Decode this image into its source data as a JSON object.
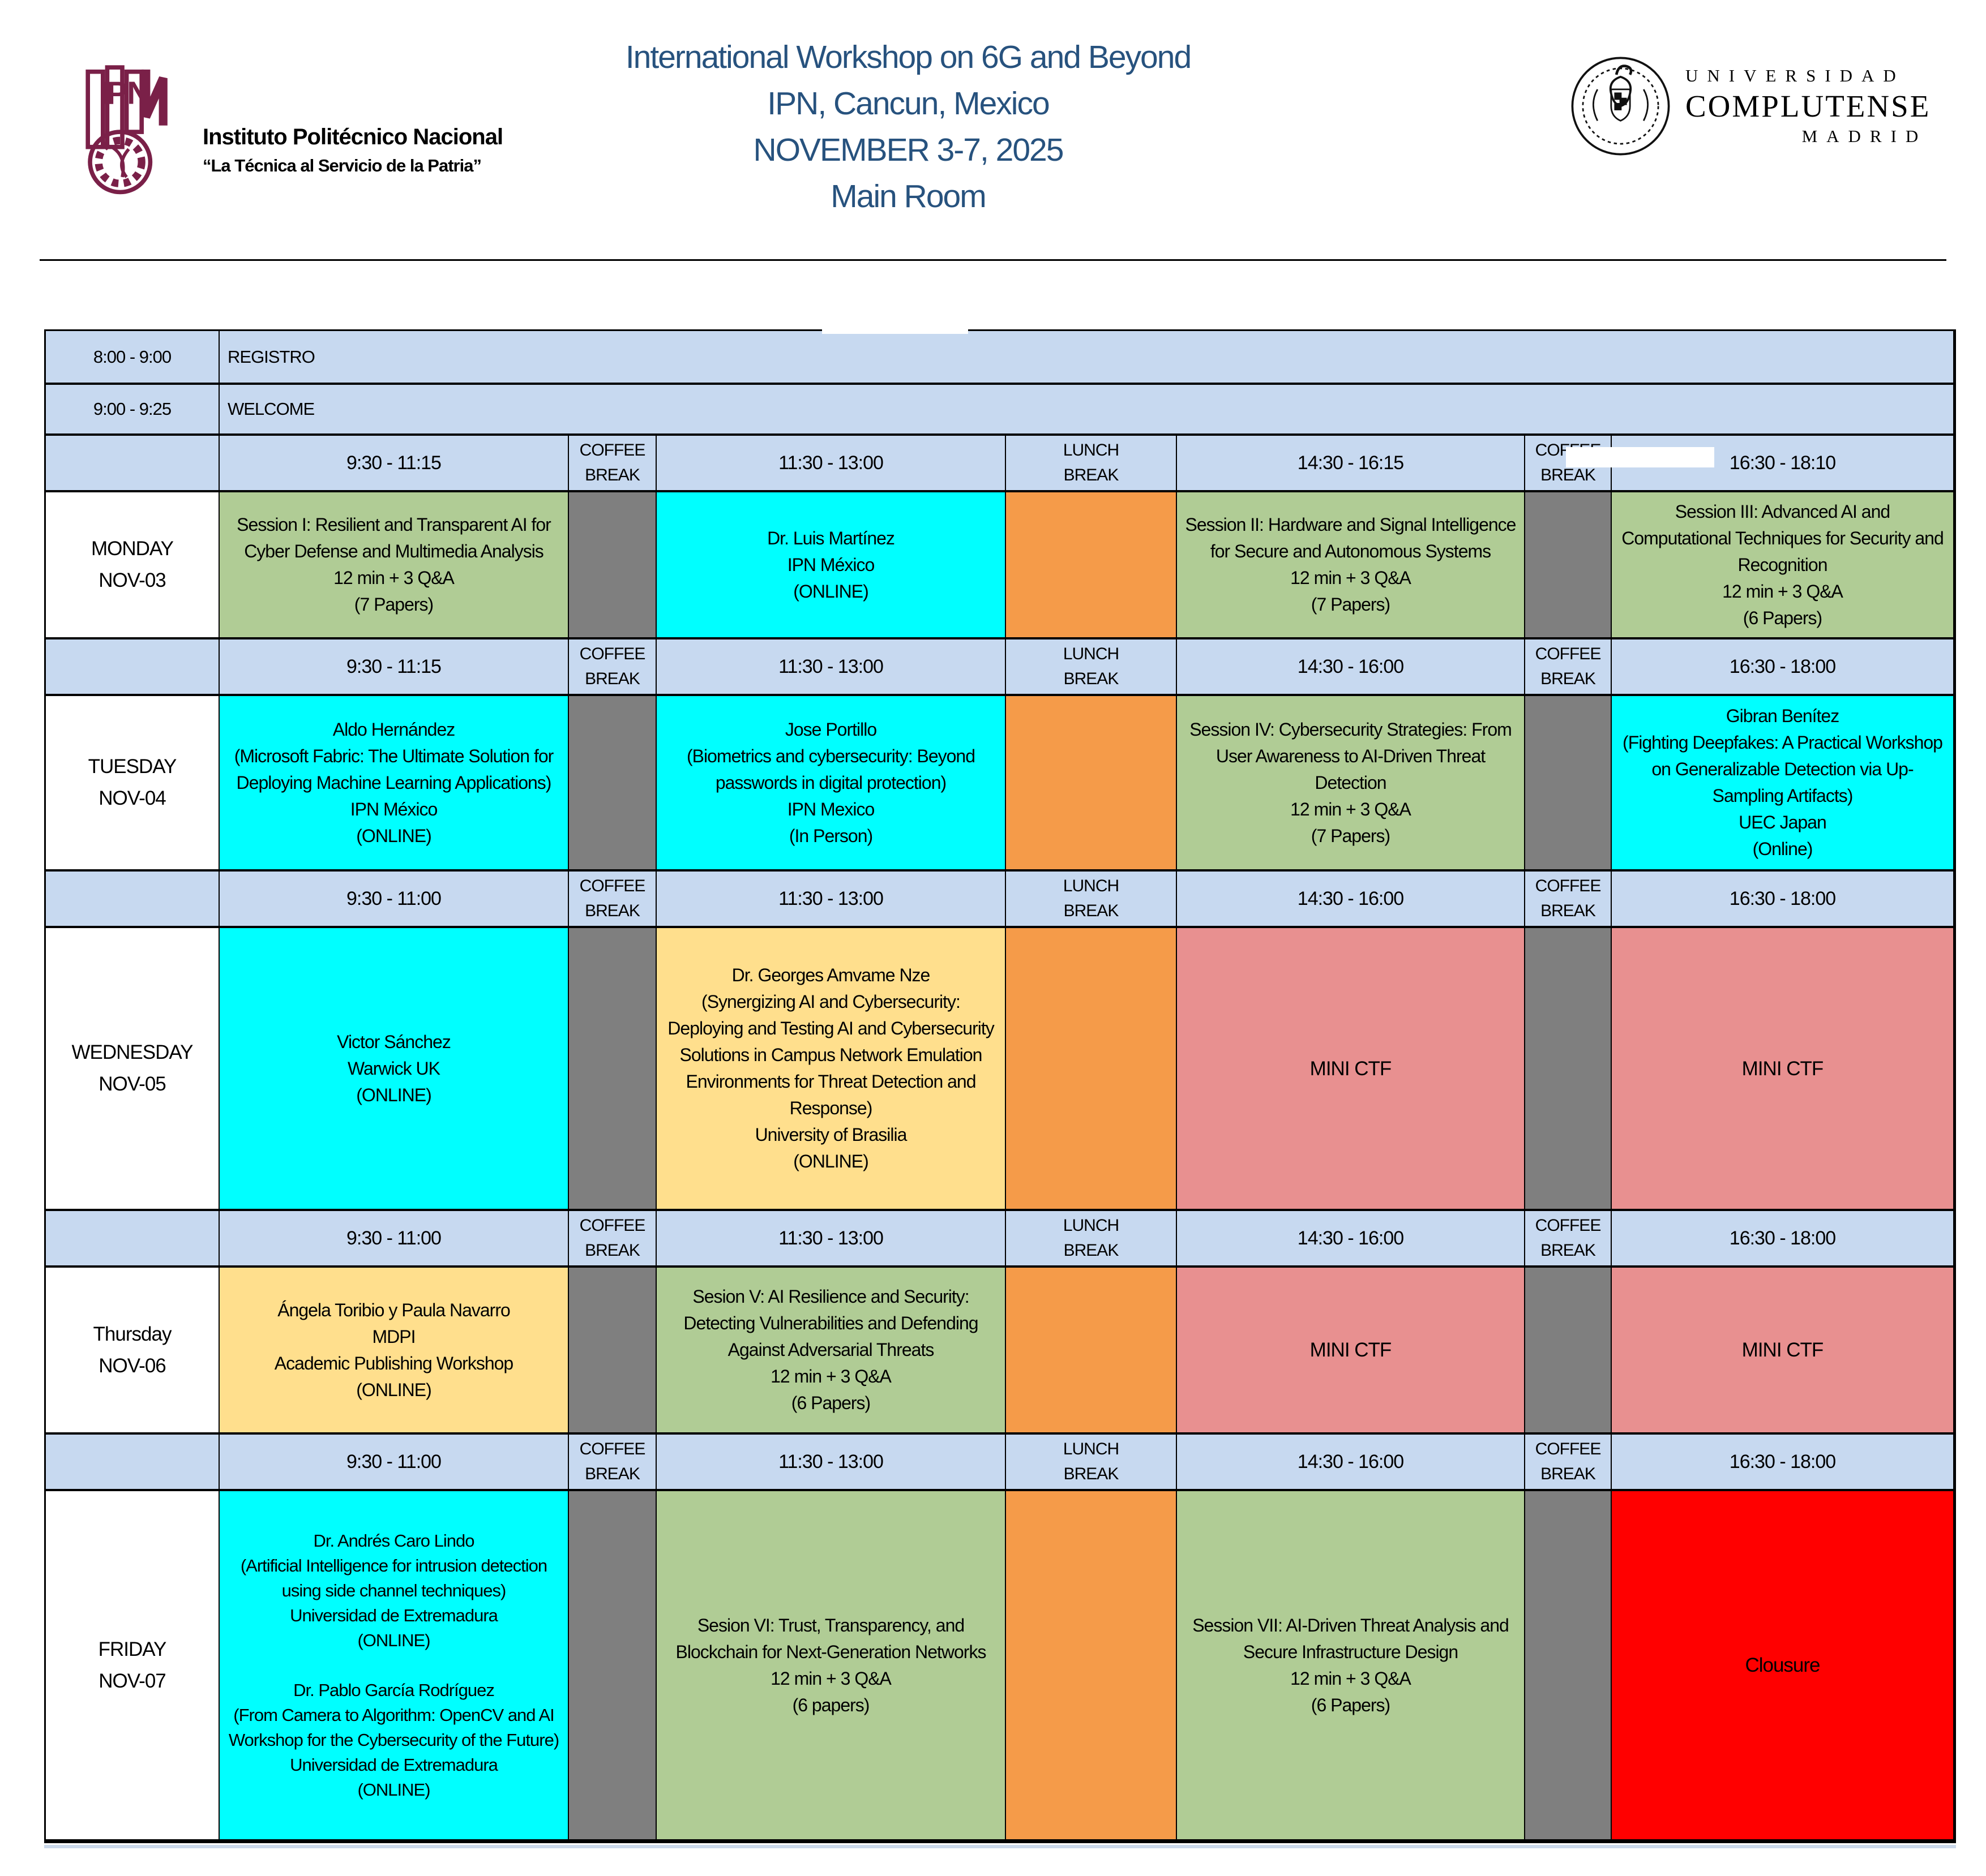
{
  "header": {
    "ipn": {
      "name": "Instituto Politécnico Nacional",
      "motto": "“La Técnica al Servicio de la Patria”"
    },
    "title_lines": [
      "International Workshop on 6G and Beyond",
      "IPN, Cancun, Mexico",
      "NOVEMBER 3-7, 2025",
      "Main Room"
    ],
    "ucm": {
      "line1": "UNIVERSIDAD",
      "line2": "COMPLUTENSE",
      "line3": "MADRID"
    }
  },
  "colors": {
    "title_blue": "#27527E",
    "header_blue": "#C7D9F0",
    "green": "#B0CC95",
    "cyan": "#00FFFF",
    "orange": "#F59B49",
    "gray": "#7F7F7F",
    "salmon": "#E89090",
    "yellow": "#FFDF8D",
    "red": "#FF0000",
    "ipn_maroon": "#7A2048"
  },
  "schedule": {
    "pre_rows": [
      {
        "time": "8:00 - 9:00",
        "label": "REGISTRO"
      },
      {
        "time": "9:00 - 9:25",
        "label": "WELCOME"
      }
    ],
    "break_labels": {
      "coffee": "COFFEE\nBREAK",
      "lunch": "LUNCH\nBREAK"
    },
    "days": [
      {
        "day": "MONDAY",
        "date": "NOV-03",
        "slots": [
          "9:30 - 11:15",
          "11:30 - 13:00",
          "14:30 - 16:15",
          "16:30 - 18:10"
        ],
        "cells": [
          {
            "color": "green",
            "text": "Session I: Resilient and Transparent AI for Cyber Defense and Multimedia Analysis\n12 min + 3 Q&A\n(7 Papers)"
          },
          {
            "color": "cyan",
            "text": "Dr. Luis Martínez\nIPN México\n(ONLINE)"
          },
          {
            "color": "green",
            "text": "Session II: Hardware and Signal Intelligence for Secure and Autonomous Systems\n12 min + 3 Q&A\n(7 Papers)"
          },
          {
            "color": "green",
            "text": "Session III: Advanced AI and Computational Techniques for Security and Recognition\n12 min + 3 Q&A\n(6 Papers)"
          }
        ]
      },
      {
        "day": "TUESDAY",
        "date": "NOV-04",
        "slots": [
          "9:30 - 11:15",
          "11:30 - 13:00",
          "14:30 - 16:00",
          "16:30 - 18:00"
        ],
        "cells": [
          {
            "color": "cyan",
            "text": "Aldo Hernández\n(Microsoft Fabric: The Ultimate Solution for Deploying Machine Learning Applications)\nIPN México\n(ONLINE)"
          },
          {
            "color": "cyan",
            "text": "Jose Portillo\n(Biometrics and cybersecurity: Beyond passwords in digital protection)\nIPN Mexico\n(In Person)"
          },
          {
            "color": "green",
            "text": "Session IV: Cybersecurity Strategies: From User Awareness to AI-Driven Threat Detection\n12 min + 3 Q&A\n(7 Papers)"
          },
          {
            "color": "cyan",
            "text": "Gibran Benítez\n(Fighting Deepfakes: A Practical Workshop on Generalizable Detection via Up-Sampling Artifacts)\nUEC Japan\n(Online)"
          }
        ]
      },
      {
        "day": "WEDNESDAY",
        "date": "NOV-05",
        "slots": [
          "9:30 - 11:00",
          "11:30 - 13:00",
          "14:30 - 16:00",
          "16:30 - 18:00"
        ],
        "cells": [
          {
            "color": "cyan",
            "text": "Victor Sánchez\nWarwick UK\n(ONLINE)"
          },
          {
            "color": "yellow",
            "text": "Dr. Georges Amvame Nze\n(Synergizing AI and Cybersecurity: Deploying and Testing AI and Cybersecurity Solutions in Campus Network Emulation Environments for Threat Detection and Response)\nUniversity of Brasilia\n(ONLINE)"
          },
          {
            "color": "salmon",
            "text": "MINI CTF"
          },
          {
            "color": "salmon",
            "text": "MINI CTF"
          }
        ]
      },
      {
        "day": "Thursday",
        "date": "NOV-06",
        "slots": [
          "9:30 - 11:00",
          "11:30 - 13:00",
          "14:30 - 16:00",
          "16:30 - 18:00"
        ],
        "cells": [
          {
            "color": "yellow",
            "text": "Ángela Toribio y Paula Navarro\nMDPI\nAcademic Publishing Workshop\n(ONLINE)"
          },
          {
            "color": "green",
            "text": "Sesion V: AI Resilience and Security: Detecting Vulnerabilities and Defending Against Adversarial Threats\n12 min + 3 Q&A\n(6 Papers)"
          },
          {
            "color": "salmon",
            "text": "MINI CTF"
          },
          {
            "color": "salmon",
            "text": "MINI CTF"
          }
        ]
      },
      {
        "day": "FRIDAY",
        "date": "NOV-07",
        "slots": [
          "9:30 - 11:00",
          "11:30 - 13:00",
          "14:30 - 16:00",
          "16:30 - 18:00"
        ],
        "cells": [
          {
            "color": "cyan",
            "small": true,
            "text": "Dr. Andrés Caro Lindo\n(Artificial Intelligence for intrusion detection using side channel techniques)\nUniversidad de Extremadura\n(ONLINE)\n\nDr. Pablo García Rodríguez\n(From Camera to Algorithm: OpenCV and AI Workshop for the Cybersecurity of the Future)\nUniversidad de Extremadura\n(ONLINE)"
          },
          {
            "color": "green",
            "text": "Sesion VI: Trust, Transparency, and Blockchain for Next-Generation Networks\n12 min + 3 Q&A\n(6 papers)"
          },
          {
            "color": "green",
            "text": "Session VII: AI-Driven Threat Analysis and Secure Infrastructure Design\n12 min + 3 Q&A\n(6 Papers)"
          },
          {
            "color": "red",
            "text": "Clousure"
          }
        ]
      }
    ]
  }
}
